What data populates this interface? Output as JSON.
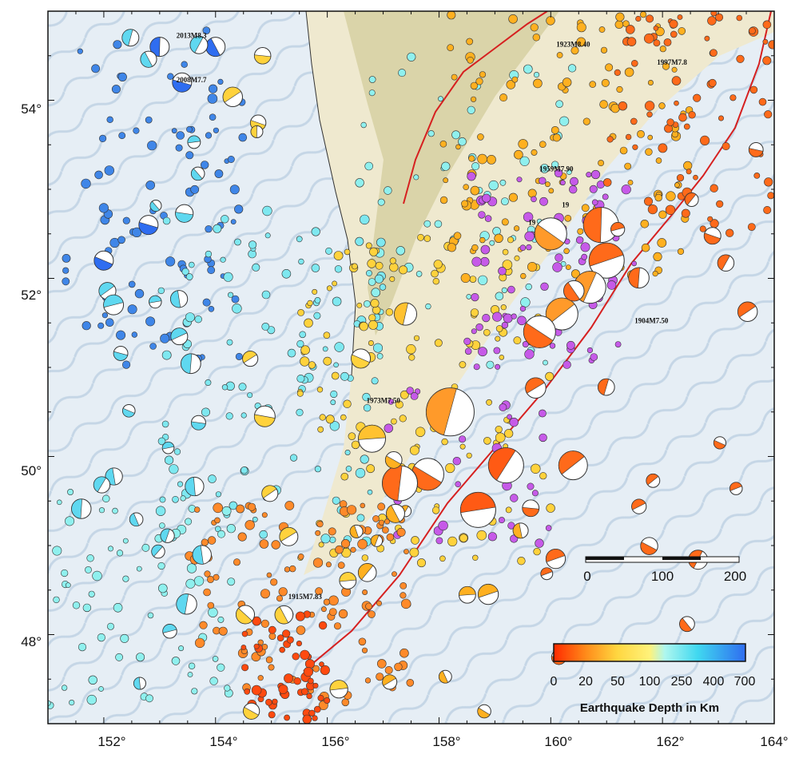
{
  "map": {
    "lon_range": [
      151,
      164
    ],
    "lat_range": [
      47,
      55
    ],
    "lon_ticks": [
      "152°",
      "154°",
      "156°",
      "158°",
      "160°",
      "162°",
      "164°"
    ],
    "lat_ticks": [
      "48°",
      "50°",
      "52°",
      "54°"
    ],
    "colors": {
      "ocean": "#e9f0f6",
      "land": "#efe9cf",
      "land_relief": "#c9c28a",
      "trench_line": "#d62020",
      "coast": "#333333"
    }
  },
  "scale_bar": {
    "labels": [
      "0",
      "100",
      "200"
    ],
    "unit_note": ""
  },
  "color_bar": {
    "title": "Earthquake Depth in Km",
    "labels": [
      "0",
      "20",
      "50",
      "100",
      "250",
      "400",
      "700"
    ],
    "colors": [
      "#ff2a00",
      "#ff8c1a",
      "#ffd640",
      "#fff27a",
      "#7ff5f0",
      "#40c8f0",
      "#2f6df0"
    ]
  },
  "labeled_quakes": [
    {
      "label": "2013M8.3",
      "lon": 153.3,
      "lat": 54.7
    },
    {
      "label": "2008M7.7",
      "lon": 153.3,
      "lat": 54.2
    },
    {
      "label": "1923M8.40",
      "lon": 160.1,
      "lat": 54.6
    },
    {
      "label": "1997M7.8",
      "lon": 161.9,
      "lat": 54.4
    },
    {
      "label": "1959M7.90",
      "lon": 159.8,
      "lat": 53.2
    },
    {
      "label": "19",
      "lon": 160.2,
      "lat": 52.8
    },
    {
      "label": "19",
      "lon": 159.6,
      "lat": 52.6
    },
    {
      "label": "1904M7.50",
      "lon": 161.5,
      "lat": 51.5
    },
    {
      "label": "1973M7.50",
      "lon": 156.7,
      "lat": 50.6
    },
    {
      "label": "1915M7.83",
      "lon": 155.3,
      "lat": 48.4
    }
  ]
}
